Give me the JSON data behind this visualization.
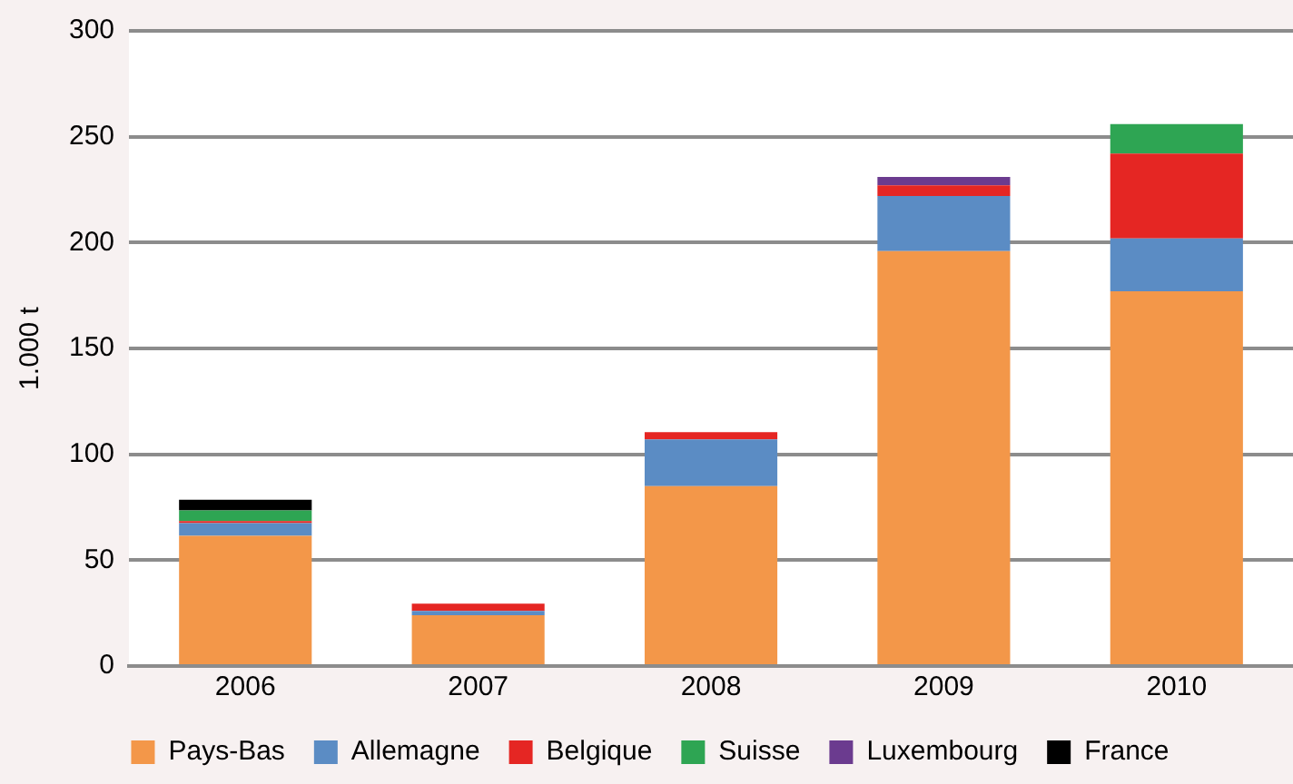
{
  "chart_data": {
    "type": "bar",
    "stacked": true,
    "ylabel": "1.000 t",
    "categories": [
      "2006",
      "2007",
      "2008",
      "2009",
      "2010"
    ],
    "series": [
      {
        "name": "Pays-Bas",
        "color": "#f39749",
        "values": [
          61.5,
          24,
          85,
          196,
          177
        ]
      },
      {
        "name": "Allemagne",
        "color": "#5b8cc4",
        "values": [
          6,
          2,
          22,
          26,
          25
        ]
      },
      {
        "name": "Belgique",
        "color": "#e52623",
        "values": [
          1,
          3.5,
          3.5,
          5,
          40
        ]
      },
      {
        "name": "Suisse",
        "color": "#2ea553",
        "values": [
          5,
          null,
          null,
          null,
          14
        ]
      },
      {
        "name": "Luxembourg",
        "color": "#6b3b8f",
        "values": [
          null,
          null,
          null,
          4,
          null
        ]
      },
      {
        "name": "France",
        "color": "#000000",
        "values": [
          5,
          null,
          null,
          null,
          null
        ]
      }
    ],
    "ylim": [
      0,
      300
    ],
    "yticks": [
      0,
      50,
      100,
      150,
      200,
      250,
      300
    ],
    "grid": "y",
    "legend": "bottom"
  }
}
